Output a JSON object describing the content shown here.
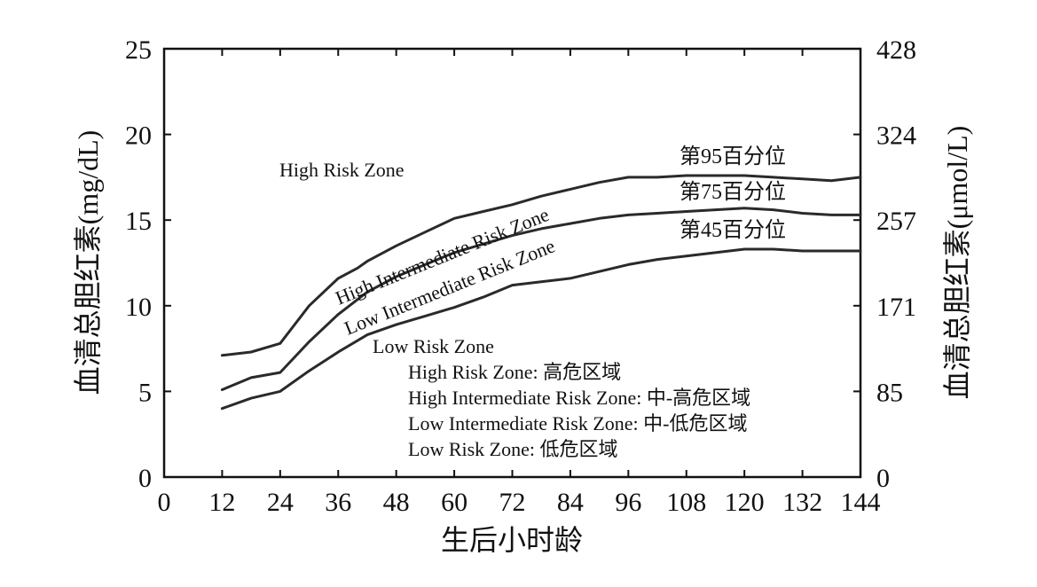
{
  "chart_data": {
    "type": "line",
    "xlabel": "生后小时龄",
    "ylabel_left": "血清总胆红素(mg/dL)",
    "ylabel_right": "血清总胆红素(μmol/L)",
    "x_ticks": [
      "0",
      "12",
      "24",
      "36",
      "48",
      "60",
      "72",
      "84",
      "96",
      "108",
      "120",
      "132",
      "144"
    ],
    "y_ticks_left": [
      "0",
      "5",
      "10",
      "15",
      "20",
      "25"
    ],
    "y_ticks_right": [
      "0",
      "85",
      "171",
      "257",
      "324",
      "428"
    ],
    "xlim": [
      0,
      144
    ],
    "ylim": [
      0,
      25
    ],
    "grid": false,
    "series": [
      {
        "name": "第95百分位",
        "x": [
          12,
          18,
          24,
          30,
          36,
          40,
          42,
          48,
          54,
          60,
          66,
          72,
          78,
          84,
          90,
          96,
          102,
          108,
          114,
          120,
          126,
          132,
          138,
          144
        ],
        "y": [
          7.1,
          7.3,
          7.8,
          10.0,
          11.6,
          12.2,
          12.6,
          13.5,
          14.3,
          15.1,
          15.5,
          15.9,
          16.4,
          16.8,
          17.2,
          17.5,
          17.5,
          17.6,
          17.6,
          17.6,
          17.5,
          17.4,
          17.3,
          17.5
        ]
      },
      {
        "name": "第75百分位",
        "x": [
          12,
          18,
          24,
          30,
          36,
          42,
          48,
          54,
          60,
          66,
          72,
          78,
          84,
          90,
          96,
          102,
          108,
          114,
          120,
          126,
          132,
          138,
          144
        ],
        "y": [
          5.1,
          5.8,
          6.1,
          7.9,
          9.5,
          10.8,
          11.7,
          12.4,
          13.1,
          13.6,
          14.1,
          14.5,
          14.8,
          15.1,
          15.3,
          15.4,
          15.5,
          15.6,
          15.7,
          15.6,
          15.4,
          15.3,
          15.3
        ]
      },
      {
        "name": "第45百分位",
        "x": [
          12,
          18,
          24,
          30,
          36,
          42,
          48,
          54,
          60,
          66,
          72,
          78,
          84,
          90,
          96,
          102,
          108,
          114,
          120,
          126,
          132,
          138,
          144
        ],
        "y": [
          4.0,
          4.6,
          5.0,
          6.2,
          7.3,
          8.3,
          8.9,
          9.4,
          9.9,
          10.5,
          11.2,
          11.4,
          11.6,
          12.0,
          12.4,
          12.7,
          12.9,
          13.1,
          13.3,
          13.3,
          13.2,
          13.2,
          13.2
        ]
      }
    ],
    "zone_labels": [
      "High Risk Zone",
      "High Intermediate Risk Zone",
      "Low Intermediate Risk Zone",
      "Low Risk Zone"
    ],
    "legend_lines": [
      "High Risk Zone: 高危区域",
      "High Intermediate Risk Zone: 中-高危区域",
      "Low Intermediate Risk Zone: 中-低危区域",
      "Low Risk Zone: 低危区域"
    ],
    "line_color": "#2a2a2a"
  }
}
